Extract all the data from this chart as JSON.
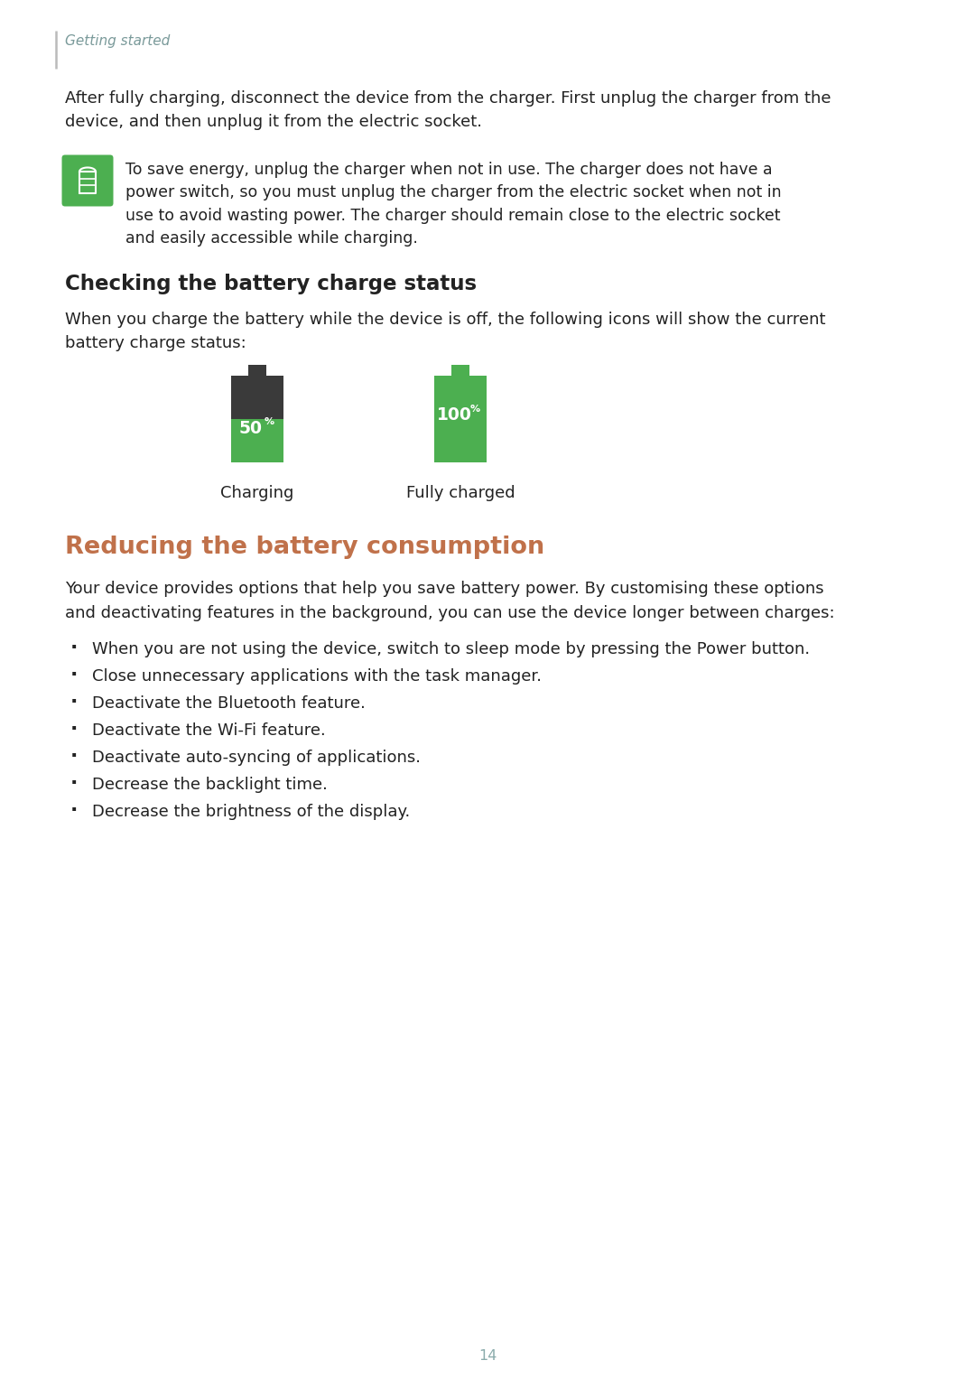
{
  "bg_color": "#ffffff",
  "page_number": "14",
  "header_text": "Getting started",
  "header_color": "#7a9a9a",
  "left_border_color": "#bbbbbb",
  "para1_lines": [
    "After fully charging, disconnect the device from the charger. First unplug the charger from the",
    "device, and then unplug it from the electric socket."
  ],
  "note_lines": [
    "To save energy, unplug the charger when not in use. The charger does not have a",
    "power switch, so you must unplug the charger from the electric socket when not in",
    "use to avoid wasting power. The charger should remain close to the electric socket",
    "and easily accessible while charging."
  ],
  "note_icon_color": "#4caf50",
  "section1_title": "Checking the battery charge status",
  "section1_body_lines": [
    "When you charge the battery while the device is off, the following icons will show the current",
    "battery charge status:"
  ],
  "battery1_pct": "50",
  "battery2_pct": "100",
  "battery_pct_sym": "%",
  "battery1_caption": "Charging",
  "battery2_caption": "Fully charged",
  "battery_green": "#4caf50",
  "battery_dark": "#3a3a3a",
  "section2_title": "Reducing the battery consumption",
  "section2_title_color": "#c0714a",
  "section2_body_lines": [
    "Your device provides options that help you save battery power. By customising these options",
    "and deactivating features in the background, you can use the device longer between charges:"
  ],
  "bullets": [
    "When you are not using the device, switch to sleep mode by pressing the Power button.",
    "Close unnecessary applications with the task manager.",
    "Deactivate the Bluetooth feature.",
    "Deactivate the Wi-Fi feature.",
    "Deactivate auto-syncing of applications.",
    "Decrease the backlight time.",
    "Decrease the brightness of the display."
  ],
  "text_color": "#222222",
  "body_fontsize": 13.0,
  "header_fontsize": 11.0,
  "section1_title_fontsize": 16.5,
  "section2_title_fontsize": 19.5,
  "bullet_fontsize": 13.0,
  "page_num_color": "#8aabab",
  "ml_in": 0.72,
  "mr_in": 9.95,
  "fig_w": 10.8,
  "fig_h": 15.27
}
